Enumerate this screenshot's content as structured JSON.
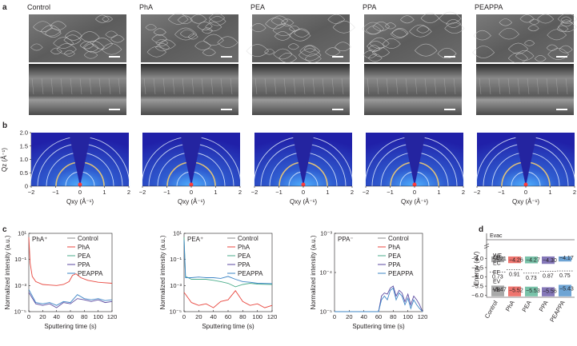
{
  "panels": {
    "a": {
      "letter": "a",
      "samples": [
        "Control",
        "PhA",
        "PEA",
        "PPA",
        "PEAPPA"
      ]
    },
    "b": {
      "letter": "b",
      "y_label": "Qz (Å⁻¹)",
      "y_ticks": [
        "2.0",
        "1.5",
        "1.0",
        "0.5",
        "0"
      ],
      "x_ticks": [
        "−2",
        "−1",
        "0",
        "1",
        "2"
      ],
      "x_label": "Qxy (Å⁻¹)"
    },
    "c": {
      "letter": "c",
      "y_label": "Normalized intensity (a.u.)",
      "x_label": "Sputtering time (s)",
      "x_ticks": [
        "0",
        "20",
        "40",
        "60",
        "80",
        "100",
        "120"
      ],
      "legend": [
        "Control",
        "PhA",
        "PEA",
        "PPA",
        "PEAPPA"
      ],
      "sub_plots": [
        {
          "ion": "PhA⁺",
          "y_ticks": [
            "10¹",
            "10⁻¹",
            "10⁻³",
            "10⁻⁵"
          ]
        },
        {
          "ion": "PEA⁺",
          "y_ticks": [
            "10¹",
            "10⁻¹",
            "10⁻³",
            "10⁻⁵"
          ]
        },
        {
          "ion": "PPA⁻",
          "y_ticks": [
            "10⁻³",
            "10⁻⁴",
            "10⁻⁵"
          ]
        }
      ]
    },
    "d": {
      "letter": "d",
      "y_label": "Energy (eV)",
      "evac": "Evac",
      "y_ticks": [
        "−4.0",
        "−4.5",
        "−5.0",
        "−5.5",
        "−6.0"
      ],
      "labels": {
        "wf": "WF",
        "cb": "CB",
        "ec": "EC",
        "ef": "EF",
        "ev": "EV",
        "vb": "VB"
      },
      "samples": [
        "Control",
        "PhA",
        "PEA",
        "PPA",
        "PEAPPA"
      ],
      "cb_values": [
        "−4.21",
        "−4.26",
        "−4.27",
        "−4.30",
        "−4.17"
      ],
      "vb_values": [
        "−5.47",
        "−5.52",
        "−5.53",
        "−5.56",
        "−5.43"
      ],
      "gaps": [
        "0.73",
        "0.91",
        "0.73",
        "0.87",
        "0.75"
      ]
    }
  },
  "colors": {
    "control": "#8c8c8c",
    "pha": "#e8473f",
    "pea": "#4cae8c",
    "ppa": "#5b4aa0",
    "peappa": "#3d85c6",
    "gixd_bg": "#2b2bb0"
  },
  "chart_data": [
    {
      "type": "line",
      "title": "PhA⁺",
      "xlabel": "Sputtering time (s)",
      "ylabel": "Normalized intensity (a.u.)",
      "xlim": [
        0,
        120
      ],
      "ylim": [
        1e-05,
        10
      ],
      "yscale": "log",
      "series": [
        {
          "name": "PhA",
          "x": [
            0,
            2,
            5,
            10,
            20,
            30,
            40,
            50,
            58,
            63,
            68,
            75,
            85,
            100,
            120
          ],
          "y": [
            5,
            0.05,
            0.005,
            0.002,
            0.0012,
            0.0011,
            0.001,
            0.0012,
            0.002,
            0.006,
            0.008,
            0.004,
            0.0025,
            0.0018,
            0.0015
          ]
        },
        {
          "name": "PEAPPA",
          "x": [
            0,
            10,
            20,
            30,
            40,
            50,
            60,
            70,
            80,
            90,
            100,
            110,
            120
          ],
          "y": [
            0.0005,
            5e-05,
            4e-05,
            5e-05,
            3e-05,
            6e-05,
            5e-05,
            0.0002,
            0.0001,
            8e-05,
            0.0001,
            7e-05,
            8e-05
          ]
        },
        {
          "name": "PPA",
          "x": [
            0,
            10,
            20,
            30,
            40,
            50,
            60,
            70,
            80,
            90,
            100,
            110,
            120
          ],
          "y": [
            0.0003,
            4e-05,
            3e-05,
            4e-05,
            2e-05,
            5e-05,
            4e-05,
            0.0001,
            8e-05,
            6e-05,
            8e-05,
            5e-05,
            6e-05
          ]
        }
      ]
    },
    {
      "type": "line",
      "title": "PEA⁺",
      "xlabel": "Sputtering time (s)",
      "ylabel": "Normalized intensity (a.u.)",
      "xlim": [
        0,
        120
      ],
      "ylim": [
        1e-05,
        10
      ],
      "yscale": "log",
      "series": [
        {
          "name": "PEA",
          "x": [
            0,
            2,
            10,
            20,
            30,
            40,
            50,
            60,
            70,
            80,
            90,
            100,
            120
          ],
          "y": [
            5,
            0.005,
            0.003,
            0.003,
            0.003,
            0.0025,
            0.002,
            0.0015,
            0.0008,
            0.0012,
            0.0015,
            0.0013,
            0.0012
          ]
        },
        {
          "name": "PEAPPA",
          "x": [
            0,
            2,
            10,
            20,
            30,
            40,
            50,
            60,
            70,
            80,
            90,
            100,
            120
          ],
          "y": [
            3,
            0.004,
            0.004,
            0.0045,
            0.004,
            0.004,
            0.0035,
            0.005,
            0.003,
            0.002,
            0.0018,
            0.0015,
            0.0014
          ]
        },
        {
          "name": "PhA",
          "x": [
            0,
            10,
            20,
            30,
            40,
            50,
            60,
            70,
            80,
            90,
            100,
            110,
            120
          ],
          "y": [
            0.0003,
            5e-05,
            3e-05,
            4e-05,
            2e-05,
            6e-05,
            8e-05,
            0.0004,
            6e-05,
            3e-05,
            4e-05,
            2e-05,
            3e-05
          ]
        }
      ]
    },
    {
      "type": "line",
      "title": "PPA⁻",
      "xlabel": "Sputtering time (s)",
      "ylabel": "Normalized intensity (a.u.)",
      "xlim": [
        0,
        120
      ],
      "ylim": [
        1e-05,
        0.001
      ],
      "yscale": "log",
      "series": [
        {
          "name": "PPA",
          "x": [
            0,
            60,
            64,
            68,
            72,
            76,
            80,
            84,
            88,
            92,
            96,
            100,
            104,
            108,
            112,
            116,
            120
          ],
          "y": [
            1e-05,
            1e-05,
            2.5e-05,
            3e-05,
            2.8e-05,
            4e-05,
            4.5e-05,
            2.5e-05,
            3.5e-05,
            3e-05,
            1.8e-05,
            2.8e-05,
            1.5e-05,
            2.5e-05,
            2e-05,
            1.5e-05,
            1e-05
          ]
        },
        {
          "name": "PEAPPA",
          "x": [
            0,
            60,
            64,
            68,
            72,
            76,
            80,
            84,
            88,
            92,
            96,
            100,
            104,
            108,
            112,
            116,
            120
          ],
          "y": [
            1e-05,
            1e-05,
            2e-05,
            2.5e-05,
            2e-05,
            3.5e-05,
            4e-05,
            2e-05,
            3e-05,
            2.5e-05,
            1.5e-05,
            2.2e-05,
            1.2e-05,
            2e-05,
            1.5e-05,
            1.2e-05,
            1e-05
          ]
        }
      ]
    }
  ]
}
